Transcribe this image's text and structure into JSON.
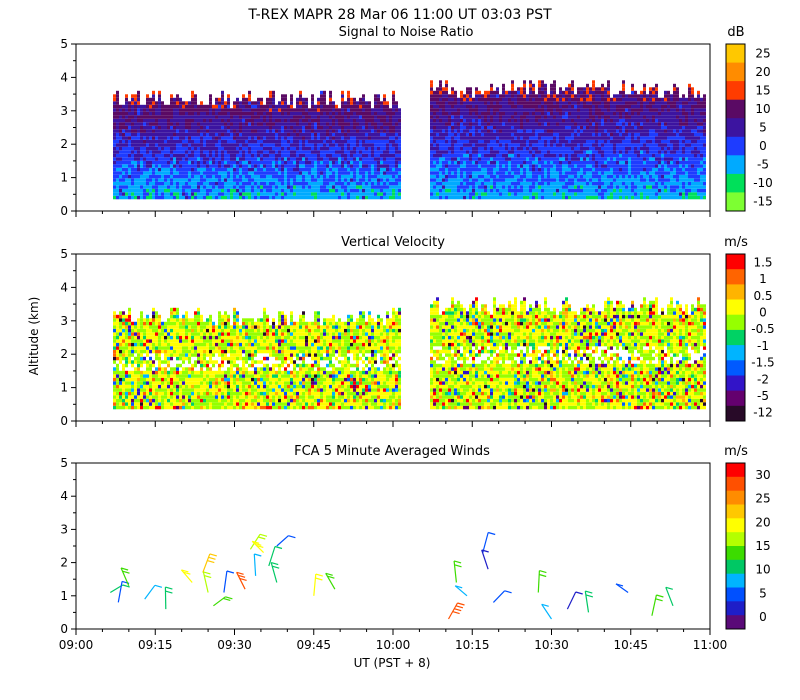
{
  "page": {
    "title": "T-REX   MAPR 28 Mar 06   11:00 UT   03:03   PST",
    "xlabel": "UT  (PST + 8)",
    "ylabel": "Altitude (km)"
  },
  "chart_data": [
    {
      "type": "heatmap",
      "title": "Signal to Noise Ratio",
      "units": "dB",
      "xlim": [
        0,
        120
      ],
      "ylim": [
        0,
        5
      ],
      "x_ticks": [
        "09:00",
        "09:15",
        "09:30",
        "09:45",
        "10:00",
        "10:15",
        "10:30",
        "10:45",
        "11:00"
      ],
      "y_ticks": [
        "0",
        "1",
        "2",
        "3",
        "4",
        "5"
      ],
      "colorbar": {
        "labels": [
          "25",
          "20",
          "15",
          "10",
          "5",
          "0",
          "-5",
          "-10",
          "-15"
        ],
        "colors": [
          "#ffc800",
          "#ff8c00",
          "#ff3c00",
          "#5a0a64",
          "#3c14a0",
          "#1e3cff",
          "#00aaff",
          "#00e05a",
          "#7dff32"
        ]
      },
      "segments": [
        {
          "x_start": 7,
          "x_end": 61,
          "top_km": 3.3
        },
        {
          "x_start": 67,
          "x_end": 119,
          "top_km": 3.6
        }
      ]
    },
    {
      "type": "heatmap",
      "title": "Vertical Velocity",
      "units": "m/s",
      "xlim": [
        0,
        120
      ],
      "ylim": [
        0,
        5
      ],
      "x_ticks": [
        "09:00",
        "09:15",
        "09:30",
        "09:45",
        "10:00",
        "10:15",
        "10:30",
        "10:45",
        "11:00"
      ],
      "y_ticks": [
        "0",
        "1",
        "2",
        "3",
        "4",
        "5"
      ],
      "colorbar": {
        "labels": [
          "1.5",
          "1",
          "0.5",
          "0",
          "-0.5",
          "-1",
          "-1.5",
          "-2",
          "-5",
          "-12"
        ],
        "colors": [
          "#ff0000",
          "#ff6400",
          "#ffb400",
          "#ffff00",
          "#96ff00",
          "#00d264",
          "#00b4ff",
          "#005aff",
          "#3214c8",
          "#64006e",
          "#280a28"
        ]
      },
      "segments": [
        {
          "x_start": 7,
          "x_end": 61,
          "top_km": 3.1
        },
        {
          "x_start": 67,
          "x_end": 119,
          "top_km": 3.4
        }
      ]
    },
    {
      "type": "scatter",
      "title": "FCA 5 Minute Averaged Winds",
      "units": "m/s",
      "xlim": [
        0,
        120
      ],
      "ylim": [
        0,
        5
      ],
      "x_ticks": [
        "09:00",
        "09:15",
        "09:30",
        "09:45",
        "10:00",
        "10:15",
        "10:30",
        "10:45",
        "11:00"
      ],
      "y_ticks": [
        "0",
        "1",
        "2",
        "3",
        "4",
        "5"
      ],
      "colorbar": {
        "labels": [
          "30",
          "25",
          "20",
          "15",
          "10",
          "5",
          "0"
        ],
        "colors": [
          "#ff0000",
          "#ff5000",
          "#ff8c00",
          "#ffc800",
          "#ffff00",
          "#b4ff00",
          "#3cdc00",
          "#00c864",
          "#00b4ff",
          "#0050ff",
          "#1e1ec8",
          "#5a0a78"
        ]
      },
      "barbs": [
        {
          "x": 6.5,
          "y": 1.1,
          "speed": 11
        },
        {
          "x": 8,
          "y": 0.8,
          "speed": 6
        },
        {
          "x": 10,
          "y": 1.3,
          "speed": 14
        },
        {
          "x": 13,
          "y": 0.9,
          "speed": 8
        },
        {
          "x": 17,
          "y": 0.6,
          "speed": 12
        },
        {
          "x": 22,
          "y": 1.4,
          "speed": 19
        },
        {
          "x": 24,
          "y": 1.7,
          "speed": 21
        },
        {
          "x": 25,
          "y": 1.1,
          "speed": 16
        },
        {
          "x": 26,
          "y": 0.7,
          "speed": 13
        },
        {
          "x": 28,
          "y": 1.1,
          "speed": 5
        },
        {
          "x": 32,
          "y": 1.2,
          "speed": 27
        },
        {
          "x": 33,
          "y": 2.4,
          "speed": 17
        },
        {
          "x": 34,
          "y": 1.6,
          "speed": 9
        },
        {
          "x": 35.5,
          "y": 2.3,
          "speed": 20
        },
        {
          "x": 36.5,
          "y": 1.9,
          "speed": 10
        },
        {
          "x": 38,
          "y": 1.4,
          "speed": 12
        },
        {
          "x": 38,
          "y": 2.5,
          "speed": 6
        },
        {
          "x": 45,
          "y": 1.0,
          "speed": 18
        },
        {
          "x": 49,
          "y": 1.2,
          "speed": 13
        },
        {
          "x": 70.5,
          "y": 0.3,
          "speed": 28
        },
        {
          "x": 72,
          "y": 1.4,
          "speed": 15
        },
        {
          "x": 74,
          "y": 1.0,
          "speed": 9
        },
        {
          "x": 77,
          "y": 2.3,
          "speed": 5
        },
        {
          "x": 78,
          "y": 1.8,
          "speed": 3
        },
        {
          "x": 79,
          "y": 0.8,
          "speed": 6
        },
        {
          "x": 87.5,
          "y": 1.1,
          "speed": 14
        },
        {
          "x": 90,
          "y": 0.3,
          "speed": 9
        },
        {
          "x": 93,
          "y": 0.6,
          "speed": 4
        },
        {
          "x": 97,
          "y": 0.5,
          "speed": 12
        },
        {
          "x": 104.5,
          "y": 1.1,
          "speed": 6
        },
        {
          "x": 109,
          "y": 0.4,
          "speed": 13
        },
        {
          "x": 113,
          "y": 0.7,
          "speed": 11
        }
      ]
    }
  ]
}
